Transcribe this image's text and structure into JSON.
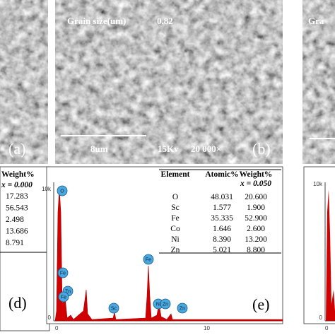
{
  "panels": {
    "a": {
      "label": "(a)"
    },
    "b": {
      "grain_size_label": "Grain size(um)",
      "grain_size": "0.82",
      "scale_bar": "8um",
      "voltage": "15Kv",
      "magnification": "20 000×",
      "label": "(b)"
    },
    "c": {
      "title_partial": "Gra"
    },
    "d": {
      "header": "Weight%",
      "composition": "x = 0.000",
      "weights": [
        "17.283",
        "56.543",
        "2.498",
        "13.686",
        "8.791"
      ],
      "label": "(d)"
    },
    "e": {
      "table": {
        "header": [
          "Element",
          "Atomic%",
          "Weight%"
        ],
        "composition": "x = 0.050",
        "rows": [
          [
            "O",
            "48.031",
            "20.600"
          ],
          [
            "Sc",
            "1.577",
            "1.900"
          ],
          [
            "Fe",
            "35.335",
            "52.900"
          ],
          [
            "Co",
            "1.646",
            "2.600"
          ],
          [
            "Ni",
            "8.390",
            "13.200"
          ],
          [
            "Zn",
            "5.021",
            "8.800"
          ]
        ]
      },
      "y_axis_labels": [
        "10k",
        "0"
      ],
      "x_axis_labels": [
        "0",
        "10"
      ],
      "peaks": [
        "O",
        "Fe",
        "Zn",
        "Sc",
        "Fe",
        "Fe",
        "Ni",
        "Zn",
        "Zn"
      ],
      "label": "(e)"
    },
    "f": {
      "y_axis_labels": [
        "10k",
        "0"
      ],
      "x_axis_labels": [
        "0"
      ]
    }
  }
}
